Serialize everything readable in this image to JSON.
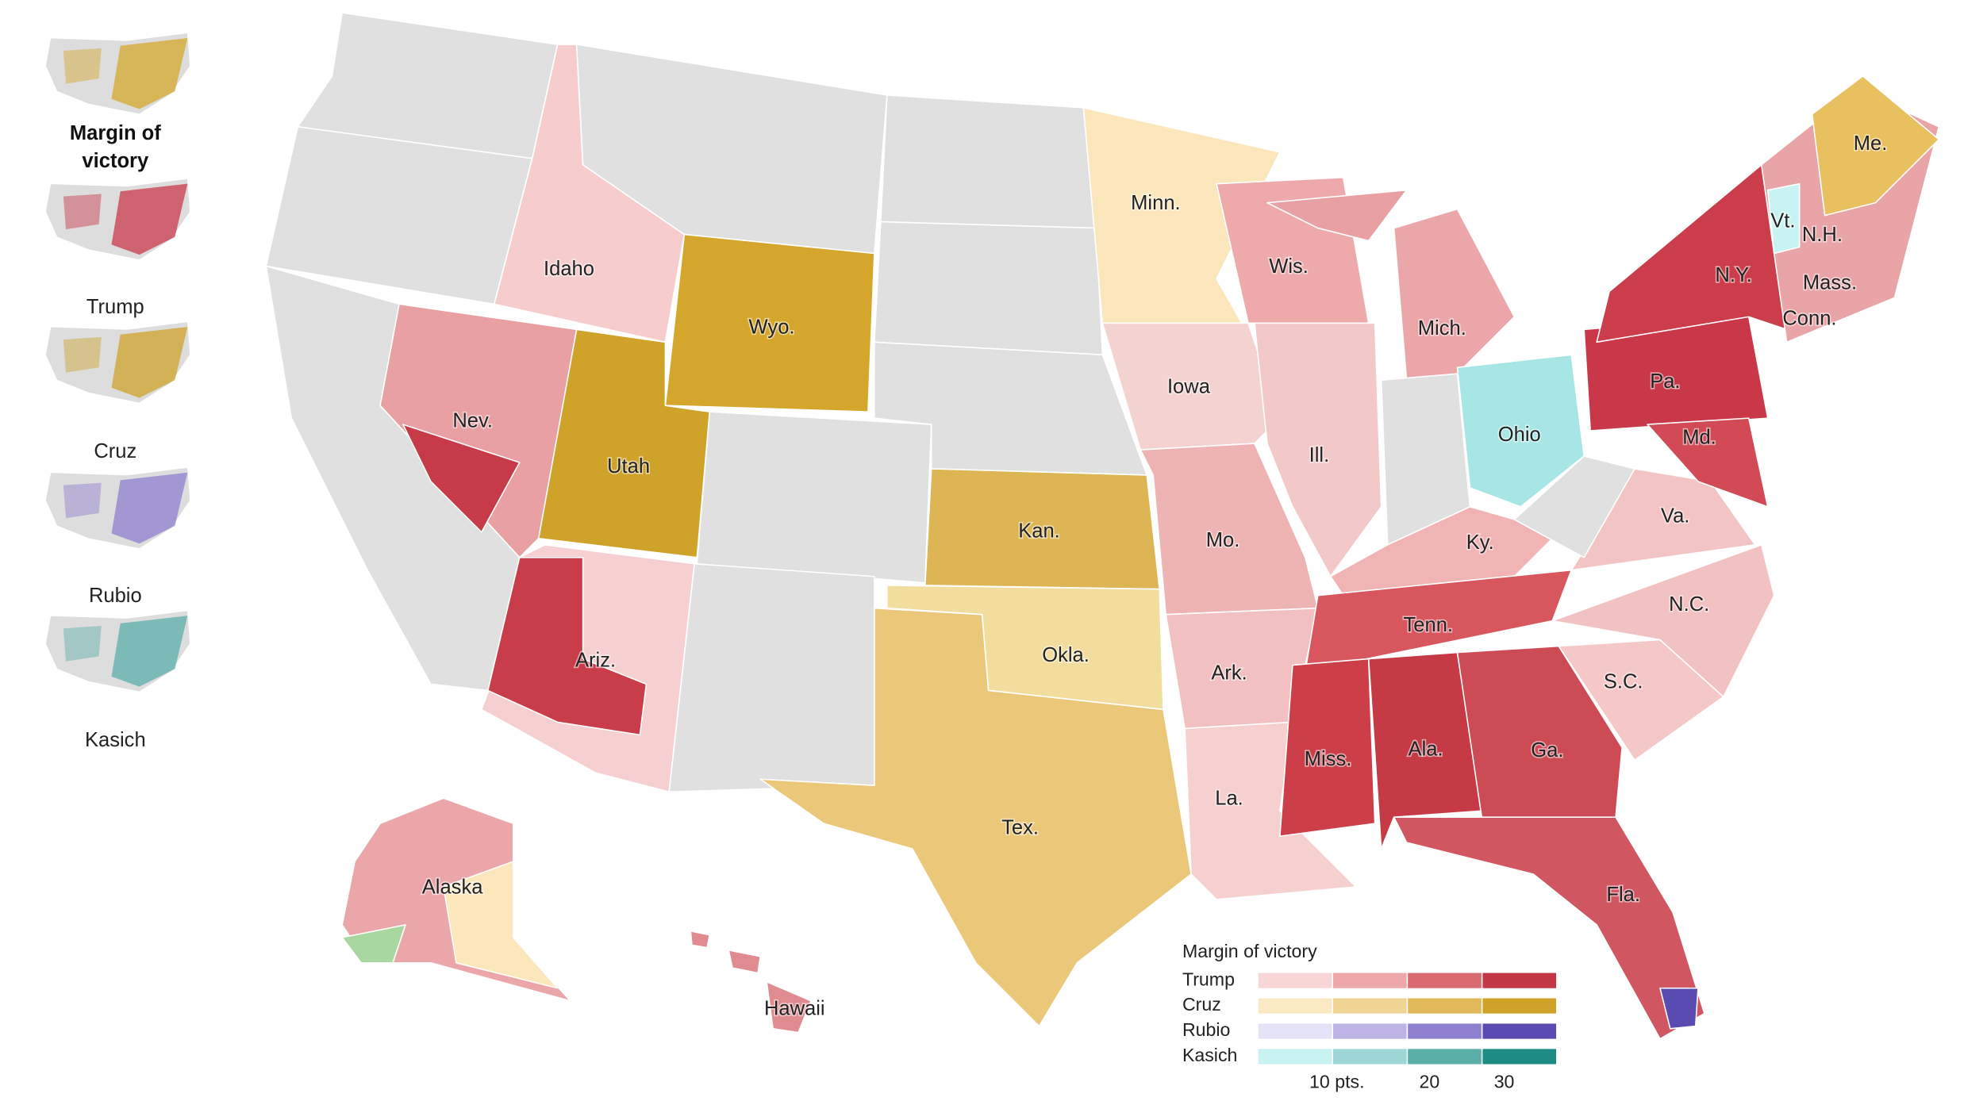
{
  "sidebar": {
    "maps": [
      {
        "label": "Margin of victory"
      },
      {
        "label": "Trump"
      },
      {
        "label": "Cruz"
      },
      {
        "label": "Rubio"
      },
      {
        "label": "Kasich"
      }
    ]
  },
  "map": {
    "labels": [
      "Minn.",
      "Wis.",
      "Idaho",
      "Wyo.",
      "Mich.",
      "Iowa",
      "Nev.",
      "Utah",
      "Ill.",
      "Ohio",
      "Pa.",
      "Md.",
      "Vt.",
      "N.H.",
      "N.Y.",
      "Mass.",
      "Conn.",
      "Me.",
      "Kan.",
      "Mo.",
      "Ky.",
      "Va.",
      "N.C.",
      "Tenn.",
      "Okla.",
      "Ark.",
      "Ariz.",
      "S.C.",
      "Miss.",
      "Ala.",
      "Ga.",
      "La.",
      "Tex.",
      "Fla.",
      "Alaska",
      "Hawaii"
    ]
  },
  "legend": {
    "title": "Margin of victory",
    "rows": [
      {
        "name": "Trump",
        "colors": [
          "#f9d6d6",
          "#eda7a9",
          "#d96a70",
          "#c23645"
        ]
      },
      {
        "name": "Cruz",
        "colors": [
          "#fbe9c4",
          "#f0d494",
          "#e1b95a",
          "#cfa22a"
        ]
      },
      {
        "name": "Rubio",
        "colors": [
          "#e5e3f7",
          "#bdb3e6",
          "#8f7fcf",
          "#5a4bb0"
        ]
      },
      {
        "name": "Kasich",
        "colors": [
          "#c9f3f3",
          "#9ed6d6",
          "#5aaea8",
          "#1f8a84"
        ]
      }
    ],
    "scale": [
      "10 pts.",
      "20",
      "30"
    ]
  }
}
